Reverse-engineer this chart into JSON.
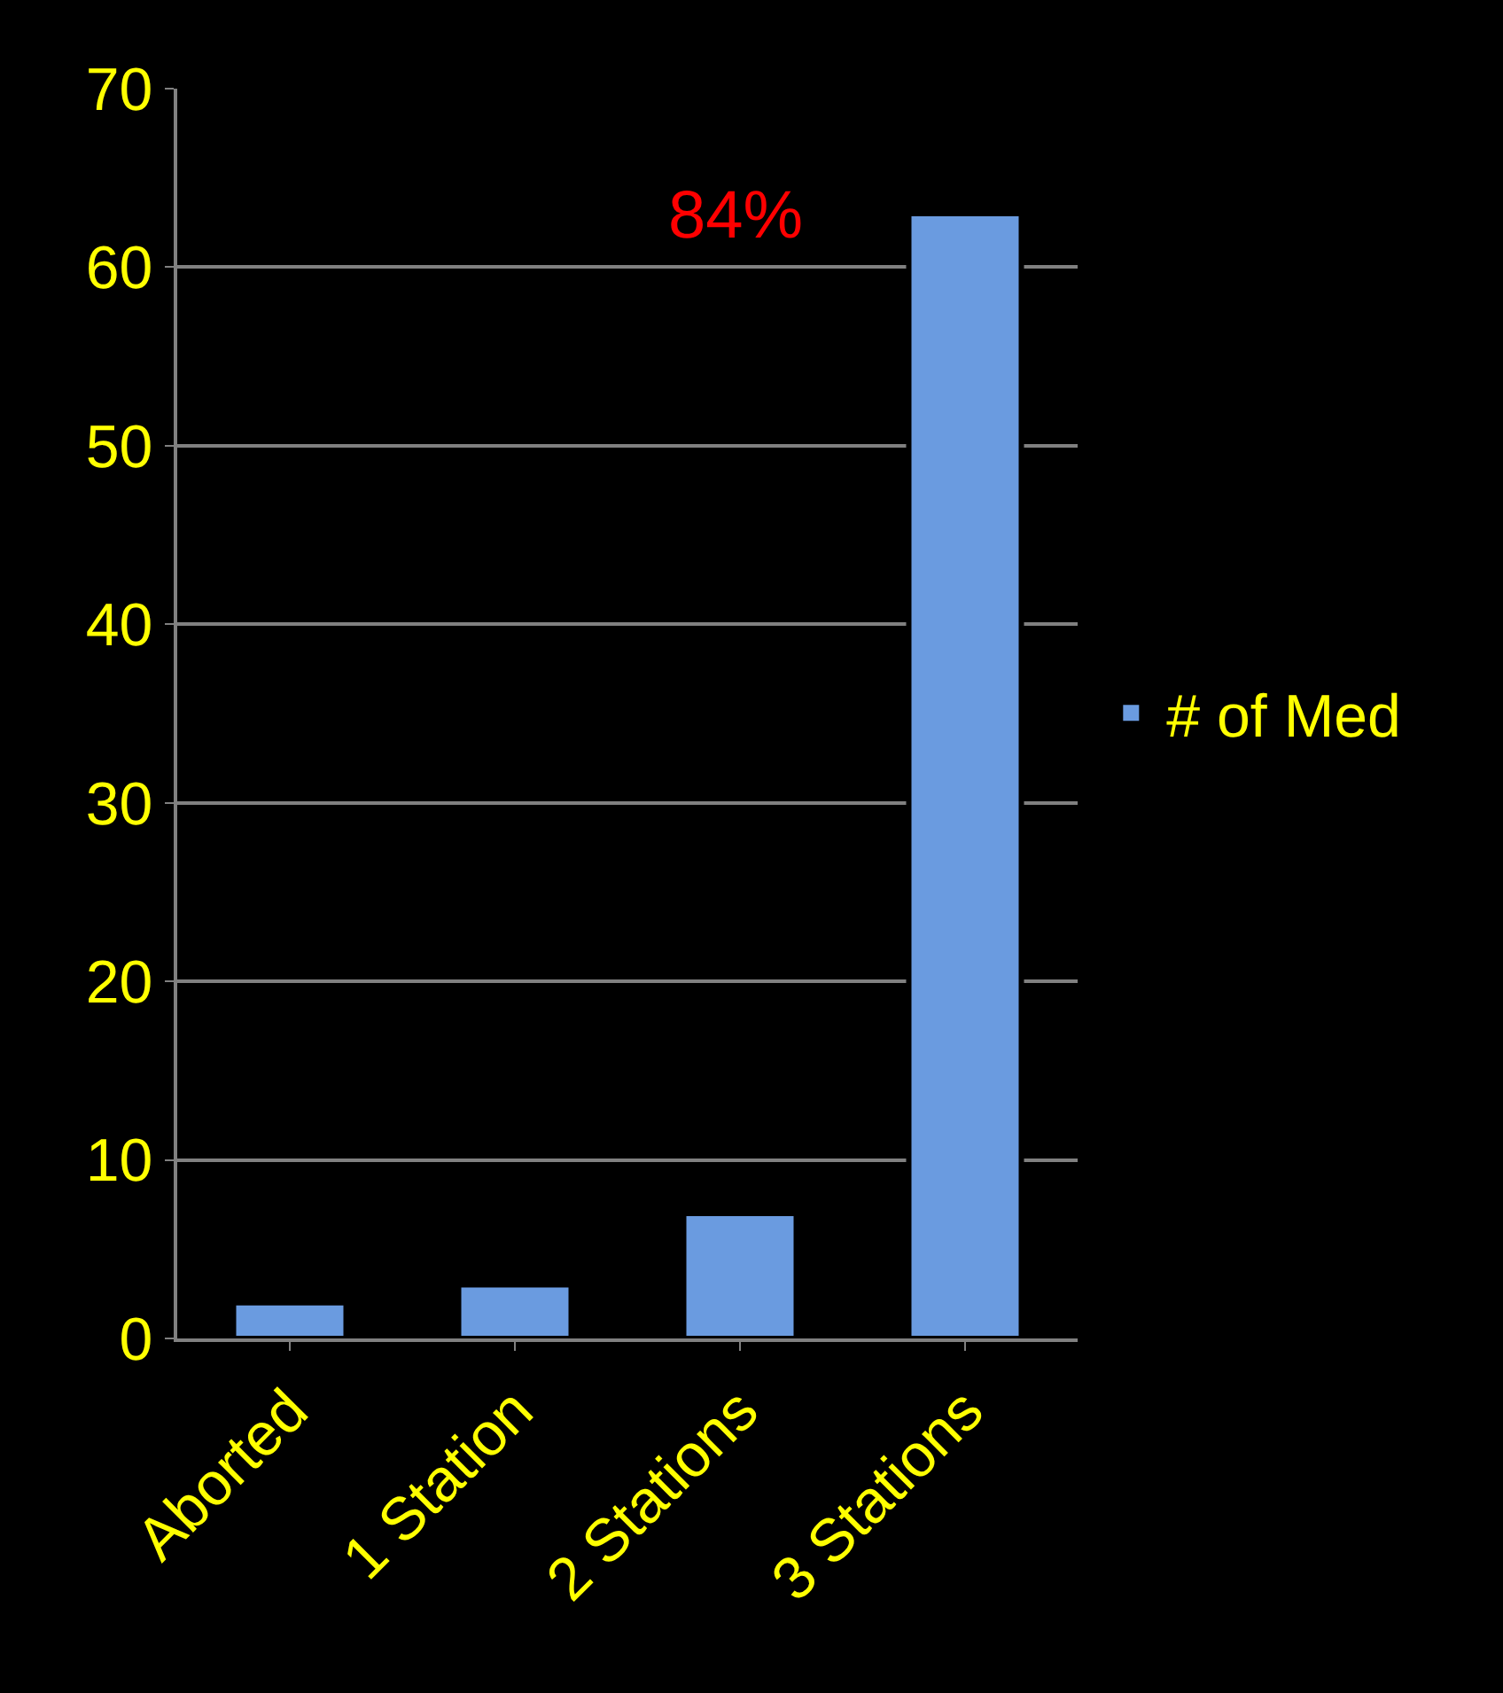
{
  "chart_data": {
    "type": "bar",
    "categories": [
      "Aborted",
      "1 Station",
      "2 Stations",
      "3 Stations"
    ],
    "series": [
      {
        "name": "# of Med",
        "color": "#6a9be0",
        "values": [
          2,
          3,
          7,
          63
        ]
      }
    ],
    "ylim": [
      0,
      70
    ],
    "yticks": [
      0,
      10,
      20,
      30,
      40,
      50,
      60,
      70
    ],
    "grid": "y",
    "legend": "right",
    "annotations": [
      "84%"
    ]
  }
}
